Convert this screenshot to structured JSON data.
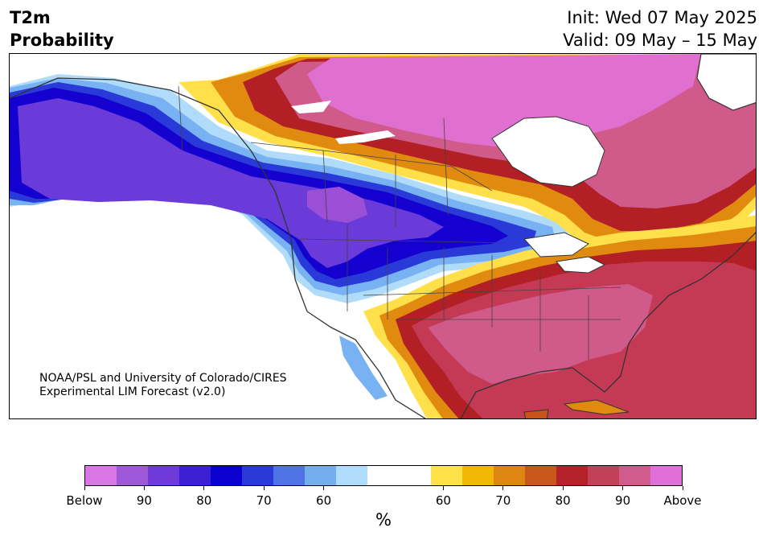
{
  "header": {
    "title_line1": "T2m",
    "title_line2": "Probability",
    "init": "Init: Wed 07 May 2025",
    "valid": "Valid: 09 May – 15 May"
  },
  "map": {
    "credit_line1": "NOAA/PSL and University of Colorado/CIRES",
    "credit_line2": "Experimental LIM Forecast (v2.0)",
    "colors": {
      "below_90": "#9b4fd6",
      "below_85": "#6a3bd9",
      "below_80": "#3a1fd1",
      "below_75": "#1400cf",
      "below_70": "#2a3fdc",
      "below_65": "#4c78e8",
      "below_60": "#78b2f2",
      "below_55": "#b0dcfa",
      "neutral": "#ffffff",
      "above_55": "#ffe04a",
      "above_60": "#f2b705",
      "above_65": "#e08a10",
      "above_70": "#c8541a",
      "above_75": "#b21f25",
      "above_80": "#c43a55",
      "above_85": "#d05a8a",
      "above_90": "#e070d0",
      "land_outline": "#333333"
    }
  },
  "colorbar": {
    "colors": [
      "#d977e6",
      "#9e58d9",
      "#6e3ad9",
      "#3d1fd3",
      "#0a00cf",
      "#2a3ad9",
      "#4f72e4",
      "#75aef0",
      "#aedcfa",
      "#ffffff",
      "#ffffff",
      "#ffe14a",
      "#f2b705",
      "#de8612",
      "#c9561b",
      "#b42128",
      "#c2405a",
      "#d35a8c",
      "#e070d8"
    ],
    "ticks": [
      "Below",
      "90",
      "80",
      "70",
      "60",
      "60",
      "70",
      "80",
      "90",
      "Above"
    ],
    "units": "%"
  }
}
